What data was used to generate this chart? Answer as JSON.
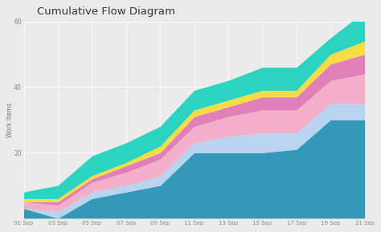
{
  "title": "Cumulative Flow Diagram",
  "ylabel": "Work Items",
  "background_color": "#ebebeb",
  "plot_bg_color": "#ebebeb",
  "x_labels": [
    "01 Sep",
    "03 Sep",
    "05 Sep",
    "07 Sep",
    "09 Sep",
    "11 Sep",
    "13 Sep",
    "15 Sep",
    "17 Sep",
    "19 Sep",
    "21 Sep"
  ],
  "x_values": [
    0,
    2,
    4,
    6,
    8,
    10,
    12,
    14,
    16,
    18,
    20
  ],
  "ylim": [
    0,
    60
  ],
  "yticks": [
    20,
    40,
    60
  ],
  "layers": [
    {
      "name": "blue_teal",
      "color": "#3498b8",
      "values": [
        3,
        0,
        6,
        8,
        10,
        20,
        20,
        20,
        21,
        30,
        30
      ]
    },
    {
      "name": "light_blue",
      "color": "#b8d4f0",
      "values": [
        0,
        2,
        2,
        2,
        3,
        3,
        5,
        6,
        5,
        5,
        5
      ]
    },
    {
      "name": "pink",
      "color": "#f4afc8",
      "values": [
        2,
        2,
        3,
        4,
        5,
        5,
        6,
        7,
        7,
        7,
        9
      ]
    },
    {
      "name": "magenta",
      "color": "#e080b8",
      "values": [
        0,
        1,
        1,
        2,
        2,
        3,
        3,
        4,
        4,
        5,
        6
      ]
    },
    {
      "name": "yellow",
      "color": "#f9dc45",
      "values": [
        1,
        1,
        1,
        1,
        2,
        2,
        2,
        2,
        2,
        3,
        4
      ]
    },
    {
      "name": "cyan",
      "color": "#2ad4c0",
      "values": [
        2,
        4,
        6,
        6,
        6,
        6,
        6,
        7,
        7,
        5,
        9
      ]
    }
  ]
}
